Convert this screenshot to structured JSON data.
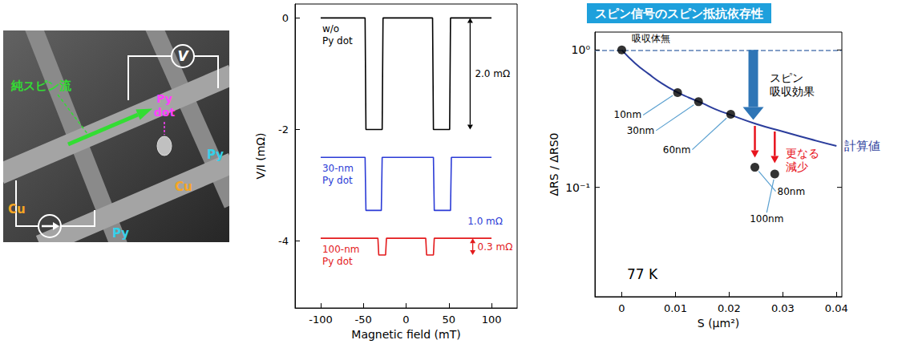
{
  "diagram": {
    "voltage_label": "V",
    "spin_current_label": "純スピン流",
    "dot_label": "Py dot",
    "wire_labels": [
      {
        "text": "Cu",
        "color": "#f5a623"
      },
      {
        "text": "Py",
        "color": "#35d0e8"
      },
      {
        "text": "Cu",
        "color": "#f5a623"
      },
      {
        "text": "Py",
        "color": "#35d0e8"
      }
    ]
  },
  "chart_data": [
    {
      "type": "line",
      "x_label": "Magnetic field (mT)",
      "y_label": "V/I (mΩ)",
      "xlim": [
        -130,
        130
      ],
      "xticks": [
        -100,
        -50,
        0,
        50,
        100
      ],
      "ylim": [
        -5.2,
        0.25
      ],
      "yticks": [
        -4,
        -2,
        0
      ],
      "grid": false,
      "series": [
        {
          "name": "w/o Py dot",
          "color": "#000000",
          "x": [
            -100,
            -48,
            -47,
            -28,
            -27,
            31,
            32,
            51,
            52,
            100
          ],
          "values": [
            0,
            0,
            -2.0,
            -2.0,
            0,
            0,
            -2.0,
            -2.0,
            0,
            0
          ]
        },
        {
          "name": "30-nm Py dot",
          "color": "#2b3bd6",
          "x": [
            -100,
            -48,
            -47,
            -29,
            -28,
            32,
            33,
            52,
            53,
            100
          ],
          "values": [
            -2.5,
            -2.5,
            -3.45,
            -3.45,
            -2.5,
            -2.5,
            -3.45,
            -3.45,
            -2.5,
            -2.5
          ]
        },
        {
          "name": "100-nm Py dot",
          "color": "#e31a1c",
          "x": [
            -100,
            -33,
            -32,
            -24,
            -23,
            23,
            24,
            32,
            33,
            100
          ],
          "values": [
            -3.95,
            -3.95,
            -4.25,
            -4.25,
            -3.95,
            -3.95,
            -4.25,
            -4.25,
            -3.95,
            -3.95
          ]
        }
      ],
      "annotations": [
        {
          "text": "2.0 mΩ",
          "color": "#000000",
          "x": 75,
          "y_from": 0,
          "y_to": -2.0
        },
        {
          "text": "1.0 mΩ",
          "color": "#2b3bd6",
          "x": 72,
          "y": -3.65
        },
        {
          "text": "0.3 mΩ",
          "color": "#e31a1c",
          "x": 78,
          "y_from": -3.95,
          "y_to": -4.25
        }
      ]
    },
    {
      "type": "scatter",
      "title": "スピン信号のスピン抵抗依存性",
      "x_label": "S (μm²)",
      "y_label": "ΔRS / ΔRS0",
      "xlim": [
        -0.005,
        0.041
      ],
      "xticks": [
        0,
        0.01,
        0.02,
        0.03,
        0.04
      ],
      "ylim": [
        0.016,
        1.35
      ],
      "yticks": [
        {
          "value": 1,
          "label": "10⁰"
        },
        {
          "value": 0.1,
          "label": "10⁻¹"
        }
      ],
      "log": "y",
      "grid": false,
      "series": [
        {
          "type": "scatter",
          "marker": "circle",
          "color": "#000000",
          "x": [
            0,
            0.0104,
            0.0143,
            0.0203,
            0.0248,
            0.0285
          ],
          "values": [
            1.0,
            0.49,
            0.42,
            0.34,
            0.14,
            0.125
          ],
          "point_labels": [
            "吸収体無",
            "10nm",
            "30nm",
            "60nm",
            "80nm",
            "100nm"
          ]
        },
        {
          "type": "line",
          "name": "計算値",
          "color": "#2b3d9c",
          "line_style": "solid",
          "x": [
            0,
            0.0025,
            0.005,
            0.0075,
            0.01,
            0.0125,
            0.015,
            0.0175,
            0.02,
            0.025,
            0.03,
            0.035,
            0.04
          ],
          "values": [
            1.0,
            0.8,
            0.67,
            0.57,
            0.5,
            0.45,
            0.41,
            0.37,
            0.34,
            0.29,
            0.255,
            0.225,
            0.2
          ]
        }
      ],
      "reference_line": {
        "value": 1,
        "line_style": "dashed",
        "color": "#5b7fb5"
      },
      "annotations": [
        {
          "lines": [
            "スピン",
            "吸収効果"
          ],
          "color": "#000000",
          "arrows": [
            {
              "x": 0.0245,
              "y_from": 1,
              "y_to": 0.31,
              "color": "#2e75b6"
            }
          ]
        },
        {
          "lines": [
            "更なる",
            "減少"
          ],
          "color": "#e8141e",
          "arrows": [
            {
              "x": 0.0248,
              "y_from": 0.28,
              "y_to": 0.165,
              "color": "#e8141e"
            },
            {
              "x": 0.0285,
              "y_from": 0.255,
              "y_to": 0.15,
              "color": "#e8141e"
            }
          ]
        },
        {
          "text": "77 K",
          "color": "#000000"
        }
      ]
    }
  ]
}
